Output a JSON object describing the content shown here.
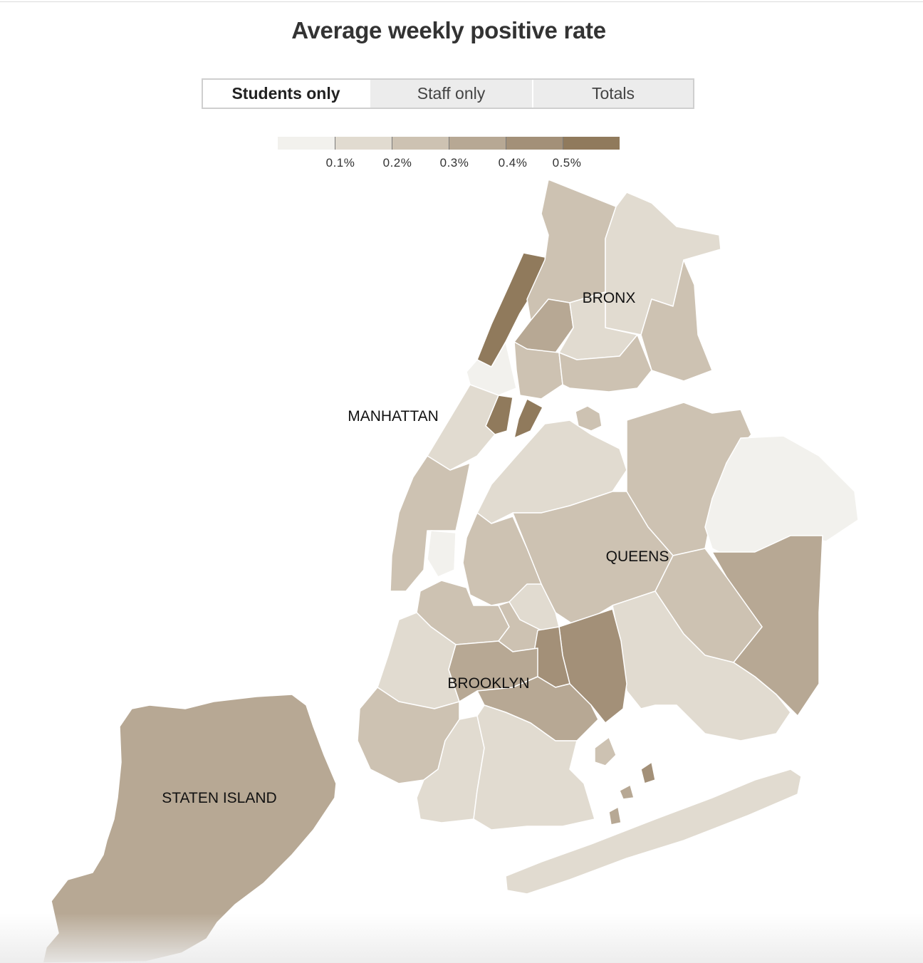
{
  "title": "Average weekly positive rate",
  "toggle": {
    "options": [
      "Students only",
      "Staff only",
      "Totals"
    ],
    "selected": "Students only"
  },
  "legend": {
    "colors": [
      "#f2f1ed",
      "#e1dbd0",
      "#cdc2b2",
      "#b7a894",
      "#a39078",
      "#907a5c"
    ],
    "breaks": [
      0.1,
      0.2,
      0.3,
      0.4,
      0.5
    ],
    "labels": [
      "0.1%",
      "0.2%",
      "0.3%",
      "0.4%",
      "0.5%"
    ]
  },
  "boroughs": {
    "bronx": "BRONX",
    "manhattan": "MANHATTAN",
    "queens": "QUEENS",
    "brooklyn": "BROOKLYN",
    "staten_island": "STATEN ISLAND"
  },
  "chart_data": {
    "type": "choropleth",
    "title": "Average weekly positive rate",
    "unit": "%",
    "bins": [
      "<0.1%",
      "0.1%-0.2%",
      "0.2%-0.3%",
      "0.3%-0.4%",
      "0.4%-0.5%",
      ">0.5%"
    ],
    "bin_colors": [
      "#f2f1ed",
      "#e1dbd0",
      "#cdc2b2",
      "#b7a894",
      "#a39078",
      "#907a5c"
    ]
  }
}
